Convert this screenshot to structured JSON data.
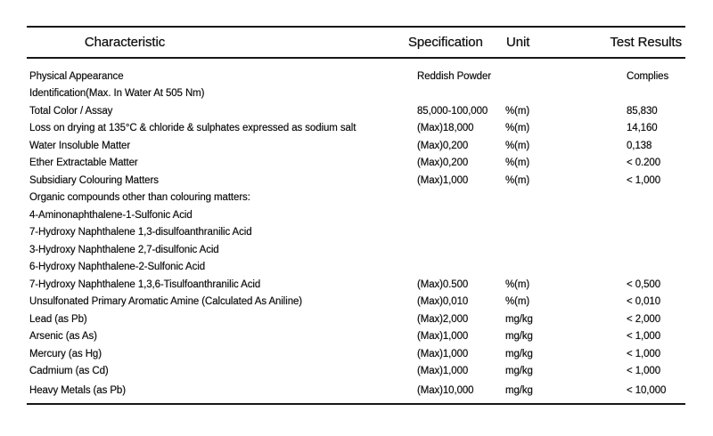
{
  "document": {
    "type": "product-specification-sheet"
  },
  "colors": {
    "background": "#ffffff",
    "text": "#0f0f0f",
    "rule_lines": "#161616"
  },
  "table": {
    "headers": {
      "characteristic": "Characteristic",
      "specification": "Specification",
      "unit": "Unit",
      "test_results": "Test Results"
    },
    "rows": [
      {
        "characteristic": "Physical Appearance",
        "specification": "Reddish Powder",
        "unit": "",
        "test_result": "Complies"
      },
      {
        "characteristic": "Identification(Max. In Water At 505 Nm)",
        "specification": "",
        "unit": "",
        "test_result": ""
      },
      {
        "characteristic": "Total Color / Assay",
        "specification": "85,000-100,000",
        "unit": "%(m)",
        "test_result": "85,830"
      },
      {
        "characteristic": "Loss on drying at 135°C & chloride & sulphates expressed as sodium salt",
        "specification": "(Max)18,000",
        "unit": "%(m)",
        "test_result": "14,160"
      },
      {
        "characteristic": "Water Insoluble Matter",
        "specification": "(Max)0,200",
        "unit": "%(m)",
        "test_result": "0,138"
      },
      {
        "characteristic": "Ether Extractable Matter",
        "specification": "(Max)0,200",
        "unit": "%(m)",
        "test_result": "< 0.200"
      },
      {
        "characteristic": "Subsidiary Colouring Matters",
        "specification": "(Max)1,000",
        "unit": "%(m)",
        "test_result": "< 1,000"
      },
      {
        "characteristic": "Organic compounds other than colouring matters:",
        "specification": "",
        "unit": "",
        "test_result": ""
      },
      {
        "characteristic": "4-Aminonaphthalene-1-Sulfonic Acid",
        "specification": "",
        "unit": "",
        "test_result": ""
      },
      {
        "characteristic": "7-Hydroxy Naphthalene 1,3-disulfoanthranilic Acid",
        "specification": "",
        "unit": "",
        "test_result": ""
      },
      {
        "characteristic": "3-Hydroxy Naphthalene 2,7-disulfonic Acid",
        "specification": "",
        "unit": "",
        "test_result": ""
      },
      {
        "characteristic": "6-Hydroxy Naphthalene-2-Sulfonic Acid",
        "specification": "",
        "unit": "",
        "test_result": ""
      },
      {
        "characteristic": "7-Hydroxy Naphthalene 1,3,6-Tisulfoanthranilic Acid",
        "specification": "(Max)0.500",
        "unit": "%(m)",
        "test_result": "< 0,500"
      },
      {
        "characteristic": "Unsulfonated Primary Aromatic Amine (Calculated As Aniline)",
        "specification": "(Max)0,010",
        "unit": "%(m)",
        "test_result": "< 0,010"
      },
      {
        "characteristic": "Lead (as Pb)",
        "specification": "(Max)2,000",
        "unit": "mg/kg",
        "test_result": "< 2,000"
      },
      {
        "characteristic": "Arsenic (as As)",
        "specification": "(Max)1,000",
        "unit": "mg/kg",
        "test_result": "< 1,000"
      },
      {
        "characteristic": "Mercury (as Hg)",
        "specification": "(Max)1,000",
        "unit": "mg/kg",
        "test_result": "< 1,000"
      },
      {
        "characteristic": "Cadmium (as Cd)",
        "specification": "(Max)1,000",
        "unit": "mg/kg",
        "test_result": "< 1,000"
      },
      {
        "characteristic": "Heavy Metals (as Pb)",
        "specification": "(Max)10,000",
        "unit": "mg/kg",
        "test_result": "< 10,000"
      }
    ]
  }
}
